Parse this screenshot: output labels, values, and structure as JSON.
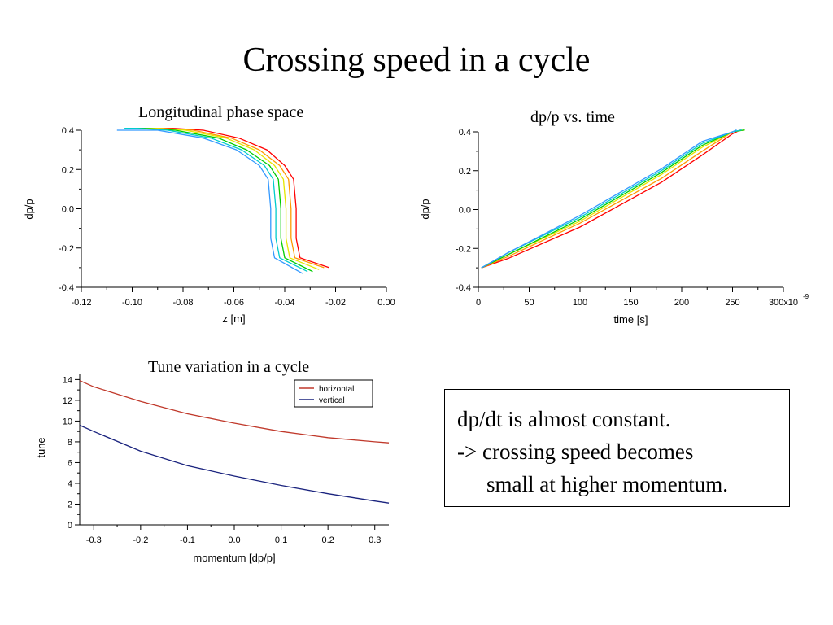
{
  "slide": {
    "title": "Crossing speed in a cycle"
  },
  "note": {
    "lines": [
      "dp/dt is almost constant.",
      "-> crossing speed becomes",
      "small at higher momentum."
    ]
  },
  "colors": {
    "family": [
      "#ff0000",
      "#ff9900",
      "#e6e600",
      "#00cc00",
      "#00cccc",
      "#3399ff"
    ],
    "horizontal": "#c0392b",
    "vertical": "#1a237e"
  },
  "chart_data": [
    {
      "id": "phase",
      "type": "line",
      "title": "Longitudinal phase space",
      "xlabel": "z [m]",
      "ylabel": "dp/p",
      "xlim": [
        -0.12,
        0.0
      ],
      "ylim": [
        -0.4,
        0.4
      ],
      "xticks": [
        -0.12,
        -0.1,
        -0.08,
        -0.06,
        -0.04,
        -0.02,
        0.0
      ],
      "xtick_labels": [
        "-0.12",
        "-0.10",
        "-0.08",
        "-0.06",
        "-0.04",
        "-0.02",
        "0.00"
      ],
      "yticks": [
        -0.4,
        -0.2,
        0.0,
        0.2,
        0.4
      ],
      "ytick_labels": [
        "-0.4",
        "-0.2",
        "0.0",
        "0.2",
        "0.4"
      ],
      "series": [
        {
          "color": "#ff0000",
          "x": [
            -0.0225,
            -0.034,
            -0.0355,
            -0.0355,
            -0.0365,
            -0.04,
            -0.047,
            -0.058,
            -0.072,
            -0.084,
            -0.09
          ],
          "y": [
            -0.3,
            -0.25,
            -0.15,
            0.0,
            0.15,
            0.22,
            0.3,
            0.36,
            0.4,
            0.41,
            0.41
          ]
        },
        {
          "color": "#ff9900",
          "x": [
            -0.0245,
            -0.036,
            -0.0375,
            -0.0375,
            -0.0385,
            -0.042,
            -0.05,
            -0.061,
            -0.076,
            -0.088,
            -0.094
          ],
          "y": [
            -0.3,
            -0.25,
            -0.15,
            0.0,
            0.15,
            0.22,
            0.3,
            0.36,
            0.4,
            0.41,
            0.41
          ]
        },
        {
          "color": "#e6e600",
          "x": [
            -0.0265,
            -0.038,
            -0.0395,
            -0.0395,
            -0.0405,
            -0.044,
            -0.052,
            -0.063,
            -0.079,
            -0.091,
            -0.097
          ],
          "y": [
            -0.31,
            -0.25,
            -0.15,
            0.0,
            0.15,
            0.22,
            0.3,
            0.36,
            0.4,
            0.41,
            0.41
          ]
        },
        {
          "color": "#00cc00",
          "x": [
            -0.029,
            -0.04,
            -0.0415,
            -0.0415,
            -0.0425,
            -0.046,
            -0.055,
            -0.066,
            -0.083,
            -0.095,
            -0.1
          ],
          "y": [
            -0.32,
            -0.25,
            -0.15,
            0.0,
            0.15,
            0.22,
            0.3,
            0.36,
            0.4,
            0.41,
            0.41
          ]
        },
        {
          "color": "#00cccc",
          "x": [
            -0.031,
            -0.042,
            -0.0435,
            -0.0435,
            -0.0445,
            -0.048,
            -0.057,
            -0.069,
            -0.086,
            -0.098,
            -0.103
          ],
          "y": [
            -0.32,
            -0.25,
            -0.15,
            0.0,
            0.15,
            0.22,
            0.3,
            0.36,
            0.4,
            0.41,
            0.41
          ]
        },
        {
          "color": "#3399ff",
          "x": [
            -0.033,
            -0.044,
            -0.0455,
            -0.0455,
            -0.0465,
            -0.05,
            -0.059,
            -0.072,
            -0.09,
            -0.101,
            -0.106
          ],
          "y": [
            -0.33,
            -0.25,
            -0.15,
            0.0,
            0.15,
            0.22,
            0.3,
            0.36,
            0.4,
            0.4,
            0.4
          ]
        }
      ]
    },
    {
      "id": "dpt",
      "type": "line",
      "title": "dp/p vs. time",
      "xlabel": "time [s]",
      "ylabel": "dp/p",
      "xlim": [
        0,
        300
      ],
      "ylim": [
        -0.4,
        0.4
      ],
      "xticks": [
        0,
        50,
        100,
        150,
        200,
        250,
        300
      ],
      "xtick_labels": [
        "0",
        "50",
        "100",
        "150",
        "200",
        "250",
        "300x10"
      ],
      "x_exponent": "-9",
      "yticks": [
        -0.4,
        -0.2,
        0.0,
        0.2,
        0.4
      ],
      "ytick_labels": [
        "-0.4",
        "-0.2",
        "0.0",
        "0.2",
        "0.4"
      ],
      "series": [
        {
          "color": "#ff0000",
          "x": [
            3,
            30,
            100,
            180,
            220,
            250,
            258
          ],
          "y": [
            -0.3,
            -0.25,
            -0.09,
            0.14,
            0.28,
            0.39,
            0.41
          ]
        },
        {
          "color": "#ff9900",
          "x": [
            3,
            30,
            100,
            180,
            220,
            250,
            262
          ],
          "y": [
            -0.3,
            -0.24,
            -0.07,
            0.16,
            0.3,
            0.4,
            0.41
          ]
        },
        {
          "color": "#e6e600",
          "x": [
            3,
            30,
            100,
            180,
            220,
            250,
            262
          ],
          "y": [
            -0.3,
            -0.23,
            -0.06,
            0.18,
            0.32,
            0.4,
            0.41
          ]
        },
        {
          "color": "#00cc00",
          "x": [
            3,
            30,
            100,
            180,
            220,
            250,
            262
          ],
          "y": [
            -0.3,
            -0.23,
            -0.05,
            0.19,
            0.33,
            0.4,
            0.41
          ]
        },
        {
          "color": "#00cccc",
          "x": [
            3,
            30,
            100,
            180,
            220,
            250,
            259
          ],
          "y": [
            -0.3,
            -0.22,
            -0.04,
            0.2,
            0.34,
            0.4,
            0.41
          ]
        },
        {
          "color": "#3399ff",
          "x": [
            3,
            30,
            100,
            180,
            220,
            250,
            254
          ],
          "y": [
            -0.3,
            -0.22,
            -0.03,
            0.21,
            0.35,
            0.4,
            0.41
          ]
        }
      ]
    },
    {
      "id": "tune",
      "type": "line",
      "title": "Tune variation in a cycle",
      "xlabel": "momentum [dp/p]",
      "ylabel": "tune",
      "xlim": [
        -0.33,
        0.33
      ],
      "ylim": [
        0,
        14.5
      ],
      "xticks": [
        -0.3,
        -0.2,
        -0.1,
        0.0,
        0.1,
        0.2,
        0.3
      ],
      "xtick_labels": [
        "-0.3",
        "-0.2",
        "-0.1",
        "0.0",
        "0.1",
        "0.2",
        "0.3"
      ],
      "yticks": [
        0,
        2,
        4,
        6,
        8,
        10,
        12,
        14
      ],
      "ytick_labels": [
        "0",
        "2",
        "4",
        "6",
        "8",
        "10",
        "12",
        "14"
      ],
      "legend_position": "top-right",
      "series": [
        {
          "name": "horizontal",
          "color": "#c0392b",
          "x": [
            -0.33,
            -0.3,
            -0.2,
            -0.1,
            0.0,
            0.1,
            0.2,
            0.3,
            0.33
          ],
          "y": [
            13.9,
            13.3,
            11.9,
            10.7,
            9.8,
            9.0,
            8.4,
            8.0,
            7.9
          ]
        },
        {
          "name": "vertical",
          "color": "#1a237e",
          "x": [
            -0.33,
            -0.3,
            -0.2,
            -0.1,
            0.0,
            0.1,
            0.2,
            0.3,
            0.33
          ],
          "y": [
            9.6,
            9.0,
            7.1,
            5.7,
            4.7,
            3.8,
            3.0,
            2.3,
            2.1
          ]
        }
      ]
    }
  ]
}
